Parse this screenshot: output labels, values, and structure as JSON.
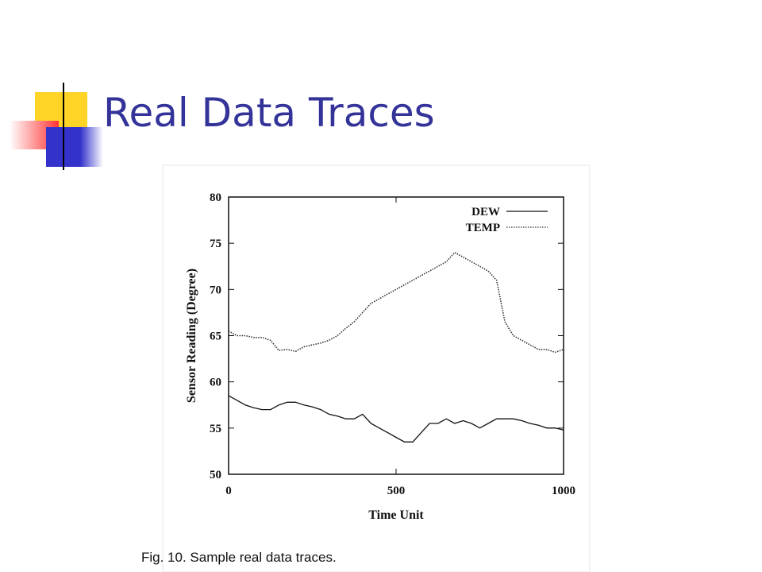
{
  "slide_title": "Real Data Traces",
  "caption": "Fig. 10. Sample real data traces.",
  "chart_data": {
    "type": "line",
    "xlabel": "Time Unit",
    "ylabel": "Sensor Reading (Degree)",
    "x": [
      0,
      25,
      50,
      75,
      100,
      125,
      150,
      175,
      200,
      225,
      250,
      275,
      300,
      325,
      350,
      375,
      400,
      425,
      450,
      475,
      500,
      525,
      550,
      575,
      600,
      625,
      650,
      675,
      700,
      725,
      750,
      775,
      800,
      825,
      850,
      875,
      900,
      925,
      950,
      975,
      1000
    ],
    "series": [
      {
        "name": "DEW",
        "color": "#111111",
        "style": "solid",
        "values": [
          58.5,
          58,
          57.5,
          57.2,
          57,
          57,
          57.5,
          57.8,
          57.8,
          57.5,
          57.3,
          57,
          56.5,
          56.3,
          56,
          56,
          56.5,
          55.5,
          55,
          54.5,
          54,
          53.5,
          53.5,
          54.5,
          55.5,
          55.5,
          56,
          55.5,
          55.8,
          55.5,
          55,
          55.5,
          56,
          56,
          56,
          55.8,
          55.5,
          55.3,
          55,
          55,
          54.8
        ]
      },
      {
        "name": "TEMP",
        "color": "#333333",
        "style": "dotted",
        "values": [
          65.5,
          65,
          65,
          64.8,
          64.8,
          64.5,
          63.4,
          63.5,
          63.3,
          63.8,
          64,
          64.2,
          64.5,
          65,
          65.8,
          66.5,
          67.5,
          68.5,
          69,
          69.5,
          70,
          70.5,
          71,
          71.5,
          72,
          72.5,
          73,
          74,
          73.5,
          73,
          72.5,
          72,
          71,
          66.5,
          65,
          64.5,
          64,
          63.5,
          63.5,
          63.2,
          63.5
        ]
      }
    ],
    "xlim": [
      0,
      1000
    ],
    "xticks": [
      0,
      500,
      1000
    ],
    "ylim": [
      50,
      80
    ],
    "yticks": [
      50,
      55,
      60,
      65,
      70,
      75,
      80
    ],
    "legend": "upper right",
    "grid": false
  }
}
